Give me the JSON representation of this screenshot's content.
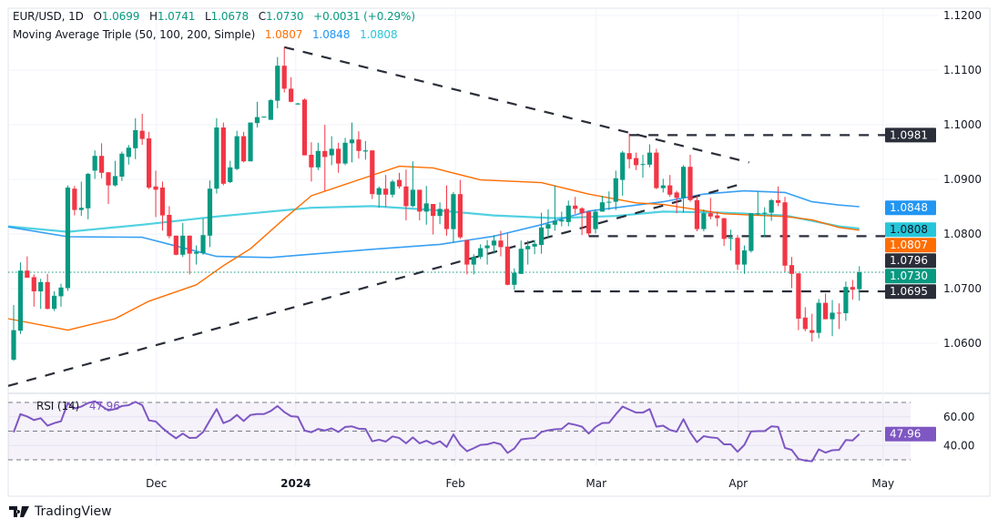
{
  "header": {
    "symbol": "EUR/USD, 1D",
    "o_label": "O",
    "open": "1.0699",
    "h_label": "H",
    "high": "1.0741",
    "l_label": "L",
    "low": "1.0678",
    "c_label": "C",
    "close": "1.0730",
    "change": "+0.0031 (+0.29%)"
  },
  "ma": {
    "label": "Moving Average Triple (50, 100, 200, Simple)",
    "v50": "1.0807",
    "v100": "1.0848",
    "v200": "1.0808",
    "colors": {
      "ma50": "#ff6d00",
      "ma100": "#2196f3",
      "ma200": "#26c6da"
    }
  },
  "colors": {
    "up": "#089981",
    "down": "#f23645",
    "rsi": "#7e57c2",
    "trend": "#2a2e39"
  },
  "price_axis": [
    "1.1200",
    "1.1100",
    "1.1000",
    "1.0900",
    "1.0800",
    "1.0700",
    "1.0600"
  ],
  "badges": [
    {
      "value": "1.0981",
      "bg": "#2a2e39",
      "fg": "#ffffff"
    },
    {
      "value": "1.0848",
      "bg": "#2196f3",
      "fg": "#ffffff"
    },
    {
      "value": "1.0808",
      "bg": "#26c6da",
      "fg": "#131722"
    },
    {
      "value": "1.0807",
      "bg": "#ff6d00",
      "fg": "#ffffff"
    },
    {
      "value": "1.0796",
      "bg": "#2a2e39",
      "fg": "#ffffff"
    },
    {
      "value": "1.0730",
      "bg": "#089981",
      "fg": "#ffffff"
    },
    {
      "value": "1.0695",
      "bg": "#2a2e39",
      "fg": "#ffffff"
    }
  ],
  "time_axis": [
    {
      "label": "Dec",
      "candle": 22.1,
      "bold": false
    },
    {
      "label": "2024",
      "candle": 42.7,
      "bold": true
    },
    {
      "label": "Feb",
      "candle": 66.3,
      "bold": false
    },
    {
      "label": "Mar",
      "candle": 87.1,
      "bold": false
    },
    {
      "label": "Apr",
      "candle": 108.1,
      "bold": false
    },
    {
      "label": "May",
      "candle": 129.5,
      "bold": false
    }
  ],
  "chart_data": {
    "type": "candlestick",
    "ohlc_fields": [
      "open",
      "high",
      "low",
      "close"
    ],
    "candles": [
      [
        1.057,
        1.067,
        1.0568,
        1.0624
      ],
      [
        1.0623,
        1.0748,
        1.0617,
        1.0733
      ],
      [
        1.0733,
        1.0759,
        1.072,
        1.072
      ],
      [
        1.0721,
        1.0726,
        1.0667,
        1.0695
      ],
      [
        1.0695,
        1.0718,
        1.0663,
        1.0712
      ],
      [
        1.0712,
        1.0727,
        1.0662,
        1.0663
      ],
      [
        1.0663,
        1.0695,
        1.0659,
        1.0687
      ],
      [
        1.0686,
        1.0709,
        1.0667,
        1.0702
      ],
      [
        1.0701,
        1.0889,
        1.0696,
        1.0885
      ],
      [
        1.0883,
        1.0888,
        1.0834,
        1.0844
      ],
      [
        1.0844,
        1.0896,
        1.0833,
        1.0848
      ],
      [
        1.0847,
        1.0912,
        1.0827,
        1.091
      ],
      [
        1.0916,
        1.0953,
        1.0901,
        1.0943
      ],
      [
        1.0943,
        1.0966,
        1.0902,
        1.0912
      ],
      [
        1.0913,
        1.0913,
        1.0855,
        1.0889
      ],
      [
        1.0889,
        1.0934,
        1.0887,
        1.0906
      ],
      [
        1.0905,
        1.0951,
        1.0897,
        1.0947
      ],
      [
        1.0941,
        1.0963,
        1.0927,
        1.0958
      ],
      [
        1.0957,
        1.1012,
        1.0937,
        1.099
      ],
      [
        1.0989,
        1.102,
        1.0963,
        1.0974
      ],
      [
        1.0975,
        1.0987,
        1.0882,
        1.0885
      ],
      [
        1.0887,
        1.0916,
        1.0831,
        1.0881
      ],
      [
        1.0885,
        1.0896,
        1.0806,
        1.0834
      ],
      [
        1.0835,
        1.0851,
        1.0792,
        1.0796
      ],
      [
        1.0797,
        1.0797,
        1.0761,
        1.0762
      ],
      [
        1.0762,
        1.082,
        1.0758,
        1.0797
      ],
      [
        1.0797,
        1.0797,
        1.0726,
        1.0764
      ],
      [
        1.0764,
        1.0779,
        1.0744,
        1.0767
      ],
      [
        1.0765,
        1.0829,
        1.0762,
        1.0798
      ],
      [
        1.0797,
        1.0898,
        1.0776,
        1.0883
      ],
      [
        1.0883,
        1.1012,
        1.0874,
        1.0995
      ],
      [
        1.0995,
        1.1004,
        1.0889,
        1.0892
      ],
      [
        1.0895,
        1.0934,
        1.0893,
        1.0922
      ],
      [
        1.0919,
        1.0989,
        1.0917,
        1.0979
      ],
      [
        1.0979,
        1.0987,
        1.0931,
        1.0933
      ],
      [
        1.0933,
        1.1004,
        1.0933,
        1.1004
      ],
      [
        1.1003,
        1.1042,
        1.0995,
        1.1014
      ],
      [
        1.1014,
        1.1015,
        1.1013,
        1.1015
      ],
      [
        1.1009,
        1.1047,
        1.1009,
        1.1045
      ],
      [
        1.1044,
        1.1124,
        1.103,
        1.1108
      ],
      [
        1.1108,
        1.1142,
        1.1059,
        1.1066
      ],
      [
        1.1066,
        1.1087,
        1.1041,
        1.1042
      ],
      [
        1.1037,
        1.104,
        1.1037,
        1.1039
      ],
      [
        1.1046,
        1.1048,
        1.0944,
        1.0944
      ],
      [
        1.0945,
        1.0968,
        1.0896,
        1.0922
      ],
      [
        1.0922,
        1.0967,
        1.0917,
        1.0952
      ],
      [
        1.0952,
        1.1,
        1.0879,
        1.0941
      ],
      [
        1.0944,
        1.0979,
        1.0926,
        1.0956
      ],
      [
        1.0956,
        1.0967,
        1.0912,
        1.0929
      ],
      [
        1.0929,
        1.0976,
        1.0926,
        1.0967
      ],
      [
        1.0966,
        1.1004,
        1.0931,
        1.0973
      ],
      [
        1.0973,
        1.0988,
        1.0938,
        1.0952
      ],
      [
        1.0951,
        1.097,
        1.0936,
        1.0953
      ],
      [
        1.0953,
        1.0953,
        1.0864,
        1.0873
      ],
      [
        1.0872,
        1.0887,
        1.0848,
        1.0884
      ],
      [
        1.0883,
        1.0908,
        1.0849,
        1.0872
      ],
      [
        1.0872,
        1.0899,
        1.0867,
        1.0896
      ],
      [
        1.0899,
        1.0912,
        1.0883,
        1.0887
      ],
      [
        1.0887,
        1.0918,
        1.0825,
        1.0851
      ],
      [
        1.0851,
        1.0933,
        1.0849,
        1.0881
      ],
      [
        1.0881,
        1.0881,
        1.0825,
        1.0841
      ],
      [
        1.0841,
        1.0888,
        1.0817,
        1.0856
      ],
      [
        1.0855,
        1.0855,
        1.0799,
        1.0833
      ],
      [
        1.0833,
        1.0858,
        1.0818,
        1.0846
      ],
      [
        1.0846,
        1.0889,
        1.0797,
        1.0809
      ],
      [
        1.0809,
        1.0877,
        1.0784,
        1.0873
      ],
      [
        1.0873,
        1.0899,
        1.0791,
        1.0794
      ],
      [
        1.0789,
        1.0789,
        1.0726,
        1.0744
      ],
      [
        1.0744,
        1.0763,
        1.0726,
        1.0758
      ],
      [
        1.0758,
        1.0781,
        1.0754,
        1.0774
      ],
      [
        1.0774,
        1.0789,
        1.0744,
        1.0779
      ],
      [
        1.0779,
        1.0798,
        1.0764,
        1.0788
      ],
      [
        1.0788,
        1.0806,
        1.0759,
        1.0776
      ],
      [
        1.0777,
        1.0801,
        1.0706,
        1.0707
      ],
      [
        1.0707,
        1.0737,
        1.0698,
        1.0729
      ],
      [
        1.0727,
        1.0788,
        1.0727,
        1.0773
      ],
      [
        1.0772,
        1.0788,
        1.0744,
        1.0778
      ],
      [
        1.0777,
        1.0789,
        1.0763,
        1.0782
      ],
      [
        1.078,
        1.0839,
        1.0764,
        1.0812
      ],
      [
        1.081,
        1.0845,
        1.0792,
        1.0818
      ],
      [
        1.0817,
        1.0889,
        1.0806,
        1.0824
      ],
      [
        1.0823,
        1.0841,
        1.0814,
        1.0826
      ],
      [
        1.0822,
        1.0861,
        1.0814,
        1.0852
      ],
      [
        1.0852,
        1.0868,
        1.0837,
        1.0846
      ],
      [
        1.0847,
        1.0849,
        1.0798,
        1.0838
      ],
      [
        1.0841,
        1.0841,
        1.0797,
        1.0801
      ],
      [
        1.0809,
        1.0845,
        1.0801,
        1.0841
      ],
      [
        1.0841,
        1.087,
        1.0841,
        1.0858
      ],
      [
        1.0858,
        1.0878,
        1.0844,
        1.0859
      ],
      [
        1.0859,
        1.0916,
        1.0844,
        1.0902
      ],
      [
        1.0899,
        1.0952,
        1.087,
        1.0949
      ],
      [
        1.0948,
        1.0984,
        1.092,
        1.0937
      ],
      [
        1.0939,
        1.0949,
        1.0917,
        1.0926
      ],
      [
        1.0927,
        1.0945,
        1.0903,
        1.0928
      ],
      [
        1.0927,
        1.0964,
        1.0922,
        1.0949
      ],
      [
        1.0949,
        1.0956,
        1.0882,
        1.0884
      ],
      [
        1.0884,
        1.0901,
        1.0876,
        1.0889
      ],
      [
        1.0889,
        1.0908,
        1.0868,
        1.0872
      ],
      [
        1.0876,
        1.0879,
        1.0838,
        1.0866
      ],
      [
        1.0866,
        1.0926,
        1.0839,
        1.0923
      ],
      [
        1.0923,
        1.0945,
        1.0859,
        1.0862
      ],
      [
        1.0862,
        1.087,
        1.0805,
        1.0809
      ],
      [
        1.0809,
        1.0845,
        1.0805,
        1.0838
      ],
      [
        1.0838,
        1.0866,
        1.0827,
        1.0832
      ],
      [
        1.0834,
        1.0841,
        1.0814,
        1.0829
      ],
      [
        1.0829,
        1.0829,
        1.0778,
        1.0791
      ],
      [
        1.0792,
        1.0808,
        1.077,
        1.0793
      ],
      [
        1.0793,
        1.0798,
        1.0734,
        1.0744
      ],
      [
        1.0744,
        1.0779,
        1.0727,
        1.077
      ],
      [
        1.0769,
        1.0838,
        1.0766,
        1.0838
      ],
      [
        1.0837,
        1.0878,
        1.0834,
        1.0838
      ],
      [
        1.0838,
        1.0849,
        1.0794,
        1.0839
      ],
      [
        1.0839,
        1.0864,
        1.0824,
        1.0862
      ],
      [
        1.0862,
        1.0887,
        1.0851,
        1.0857
      ],
      [
        1.0858,
        1.0868,
        1.0731,
        1.0742
      ],
      [
        1.0743,
        1.0758,
        1.0701,
        1.0727
      ],
      [
        1.0728,
        1.0728,
        1.0624,
        1.0645
      ],
      [
        1.0647,
        1.0666,
        1.0622,
        1.0626
      ],
      [
        1.0624,
        1.0654,
        1.0603,
        1.0619
      ],
      [
        1.0619,
        1.0681,
        1.0609,
        1.0674
      ],
      [
        1.0674,
        1.0691,
        1.0644,
        1.0644
      ],
      [
        1.0644,
        1.0679,
        1.0613,
        1.0656
      ],
      [
        1.0656,
        1.0673,
        1.0626,
        1.0655
      ],
      [
        1.0655,
        1.0713,
        1.0641,
        1.0703
      ],
      [
        1.0703,
        1.0716,
        1.068,
        1.0698
      ],
      [
        1.0699,
        1.0741,
        1.0678,
        1.073
      ]
    ],
    "moving_averages": {
      "ma50": [
        [
          -0.5,
          1.0645
        ],
        [
          9,
          1.0624
        ],
        [
          16,
          1.0645
        ],
        [
          21,
          1.0677
        ],
        [
          28,
          1.0707
        ],
        [
          32,
          1.0742
        ],
        [
          36,
          1.0773
        ],
        [
          41,
          1.0828
        ],
        [
          45,
          1.087
        ],
        [
          51,
          1.0895
        ],
        [
          58,
          1.0924
        ],
        [
          63,
          1.0921
        ],
        [
          70,
          1.0899
        ],
        [
          79,
          1.0894
        ],
        [
          86,
          1.0873
        ],
        [
          93,
          1.0857
        ],
        [
          97,
          1.0854
        ],
        [
          106,
          1.0837
        ],
        [
          115,
          1.0832
        ],
        [
          119,
          1.0826
        ],
        [
          123,
          1.0812
        ],
        [
          126,
          1.0807
        ]
      ],
      "ma100": [
        [
          -0.5,
          1.0813
        ],
        [
          9,
          1.0795
        ],
        [
          20,
          1.0794
        ],
        [
          25,
          1.0778
        ],
        [
          31,
          1.0759
        ],
        [
          39,
          1.0757
        ],
        [
          45,
          1.0763
        ],
        [
          54,
          1.0772
        ],
        [
          64,
          1.0781
        ],
        [
          72,
          1.0796
        ],
        [
          79,
          1.0817
        ],
        [
          86,
          1.0842
        ],
        [
          97,
          1.0859
        ],
        [
          103,
          1.0873
        ],
        [
          109,
          1.0879
        ],
        [
          115,
          1.0876
        ],
        [
          119,
          1.0859
        ],
        [
          123,
          1.0853
        ],
        [
          126,
          1.085
        ]
      ],
      "ma200": [
        [
          -0.5,
          1.0814
        ],
        [
          9,
          1.0804
        ],
        [
          20,
          1.0817
        ],
        [
          31,
          1.0832
        ],
        [
          45,
          1.0848
        ],
        [
          54,
          1.0851
        ],
        [
          63,
          1.0844
        ],
        [
          72,
          1.0834
        ],
        [
          81,
          1.0829
        ],
        [
          90,
          1.0833
        ],
        [
          97,
          1.0841
        ],
        [
          106,
          1.0839
        ],
        [
          115,
          1.0834
        ],
        [
          123,
          1.0814
        ],
        [
          126,
          1.081
        ]
      ]
    },
    "trendlines": [
      {
        "name": "descending-trendline",
        "from": [
          41,
          1.1142
        ],
        "to": [
          109.7,
          1.0931
        ]
      },
      {
        "name": "ascending-trendline",
        "from": [
          0,
          1.0522
        ],
        "to": [
          109,
          1.0893
        ]
      }
    ],
    "levels": [
      {
        "price": 1.0981,
        "from_candle": 92
      },
      {
        "price": 1.0796,
        "from_candle": 86
      },
      {
        "price": 1.0695,
        "from_candle": 75
      }
    ],
    "last_price": 1.073,
    "ylim": [
      1.0522,
      1.12
    ]
  },
  "rsi": {
    "label": "RSI (14)",
    "value": "47.96",
    "axis": [
      "60.00",
      "40.00"
    ],
    "bands": [
      70,
      50,
      30
    ],
    "values": [
      49.2,
      61.9,
      60.2,
      57.7,
      59,
      53.8,
      55.6,
      56.9,
      69.6,
      65.8,
      67.1,
      69.6,
      70.8,
      67.5,
      64.4,
      65.4,
      67.5,
      68.1,
      70.4,
      68.1,
      57.5,
      56.7,
      52.1,
      48.3,
      45,
      48.3,
      45.2,
      45.4,
      49.4,
      57.5,
      65.4,
      55.6,
      57.5,
      61.3,
      57.1,
      61.3,
      61.9,
      61.9,
      64,
      67.5,
      63.3,
      60.4,
      60,
      50.4,
      49.2,
      51.5,
      50.4,
      51.9,
      49.4,
      52.9,
      53.3,
      51.7,
      51.5,
      42.9,
      44,
      42.7,
      46.3,
      45.2,
      41.5,
      45.6,
      41.5,
      43.3,
      41,
      42.9,
      39,
      47.7,
      40.4,
      36,
      38.1,
      40.4,
      40.8,
      42.1,
      40.8,
      34.8,
      37.9,
      44.2,
      44.8,
      45.2,
      49.4,
      50.6,
      51.3,
      51.5,
      55.4,
      54.4,
      53.1,
      48.3,
      52.9,
      55.6,
      55.8,
      61.7,
      67.1,
      65,
      62.9,
      62.9,
      65.4,
      53.1,
      53.8,
      50.8,
      49.6,
      58.3,
      49,
      42.3,
      46.5,
      45.6,
      45.2,
      40.8,
      40.8,
      35.6,
      40.4,
      49.8,
      50,
      50,
      53.3,
      52.9,
      38.3,
      36.9,
      30.6,
      29.4,
      29,
      37.3,
      35,
      36.7,
      36.9,
      43.8,
      43.5,
      47.96
    ]
  },
  "brand": "TradingView"
}
